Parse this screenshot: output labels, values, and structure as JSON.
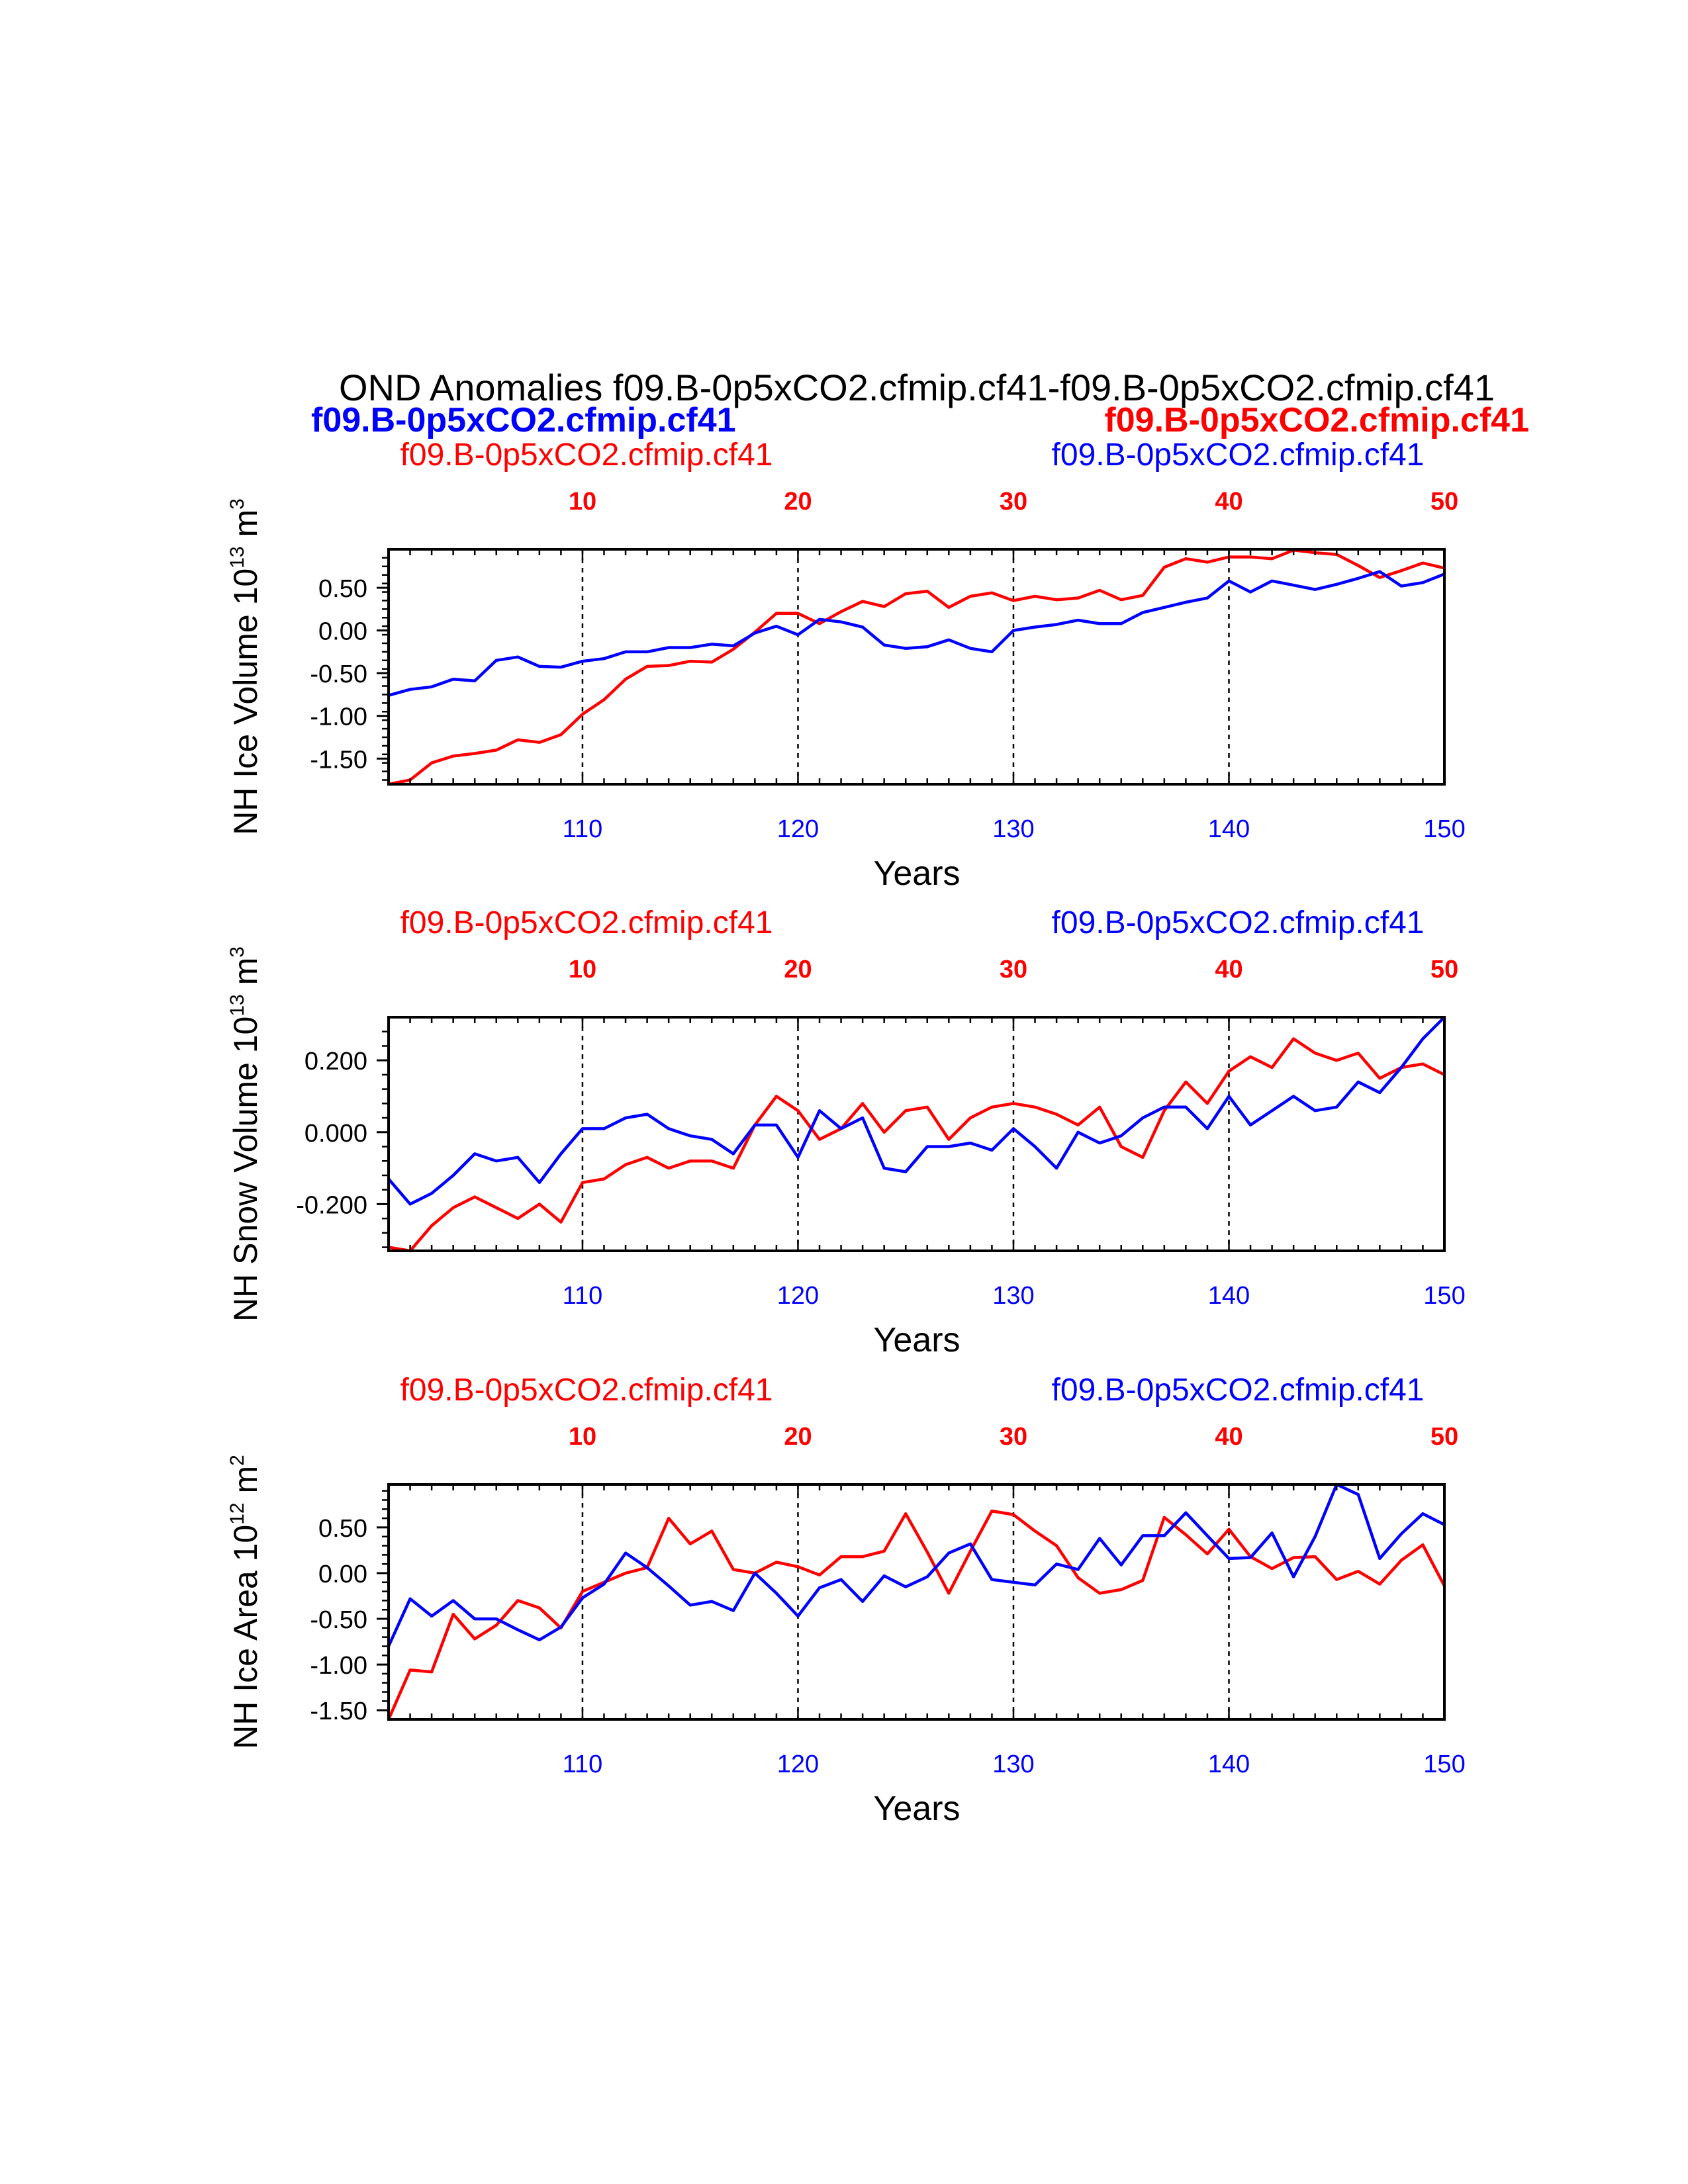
{
  "title": "OND Anomalies f09.B-0p5xCO2.cfmip.cf41-f09.B-0p5xCO2.cfmip.cf41",
  "header": {
    "left_bold": "f09.B-0p5xCO2.cfmip.cf41",
    "right_bold": "f09.B-0p5xCO2.cfmip.cf41"
  },
  "colors": {
    "red": "#ff0000",
    "blue": "#0000ff",
    "axis": "#000000"
  },
  "chart_data": [
    {
      "type": "line",
      "ylabel": "NH Ice Volume 10",
      "ylabel_sup": "13",
      "ylabel_unit": "m",
      "ylabel_unit_sup": "3",
      "xlabel": "Years",
      "left_label": "f09.B-0p5xCO2.cfmip.cf41",
      "right_label": "f09.B-0p5xCO2.cfmip.cf41",
      "top_ticks": [
        "10",
        "20",
        "30",
        "40",
        "50"
      ],
      "bottom_ticks": [
        "110",
        "120",
        "130",
        "140",
        "150"
      ],
      "xlim": [
        101,
        150
      ],
      "ylim": [
        -1.8,
        0.95
      ],
      "yticks": [
        0.5,
        0.0,
        -0.5,
        -1.0,
        -1.5
      ],
      "ytick_labels": [
        "0.50",
        "0.00",
        "-0.50",
        "-1.00",
        "-1.50"
      ],
      "yminor": [
        -1.75,
        -1.65,
        -1.55,
        -1.45,
        -1.35,
        -1.25,
        -1.15,
        -1.05,
        -0.95,
        -0.85,
        -0.75,
        -0.65,
        -0.55,
        -0.45,
        -0.35,
        -0.25,
        -0.15,
        -0.05,
        0.05,
        0.15,
        0.25,
        0.35,
        0.45,
        0.55,
        0.65,
        0.75,
        0.85
      ],
      "grid_x": [
        110,
        120,
        130,
        140
      ],
      "x": [
        101,
        102,
        103,
        104,
        105,
        106,
        107,
        108,
        109,
        110,
        111,
        112,
        113,
        114,
        115,
        116,
        117,
        118,
        119,
        120,
        121,
        122,
        123,
        124,
        125,
        126,
        127,
        128,
        129,
        130,
        131,
        132,
        133,
        134,
        135,
        136,
        137,
        138,
        139,
        140,
        141,
        142,
        143,
        144,
        145,
        146,
        147,
        148,
        149,
        150
      ],
      "series": [
        {
          "color": "red",
          "values": [
            -1.8,
            -1.75,
            -1.55,
            -1.47,
            -1.44,
            -1.4,
            -1.28,
            -1.31,
            -1.22,
            -0.98,
            -0.81,
            -0.57,
            -0.42,
            -0.41,
            -0.36,
            -0.37,
            -0.22,
            -0.02,
            0.2,
            0.2,
            0.08,
            0.22,
            0.34,
            0.28,
            0.43,
            0.46,
            0.27,
            0.4,
            0.44,
            0.35,
            0.4,
            0.36,
            0.38,
            0.47,
            0.36,
            0.41,
            0.74,
            0.84,
            0.8,
            0.86,
            0.86,
            0.84,
            0.94,
            0.91,
            0.89,
            0.76,
            0.62,
            0.7,
            0.79,
            0.73
          ]
        },
        {
          "color": "blue",
          "values": [
            -0.76,
            -0.69,
            -0.66,
            -0.57,
            -0.59,
            -0.35,
            -0.31,
            -0.42,
            -0.43,
            -0.36,
            -0.33,
            -0.25,
            -0.25,
            -0.2,
            -0.2,
            -0.16,
            -0.18,
            -0.03,
            0.05,
            -0.05,
            0.13,
            0.1,
            0.04,
            -0.17,
            -0.21,
            -0.19,
            -0.11,
            -0.21,
            -0.25,
            0.0,
            0.04,
            0.07,
            0.12,
            0.08,
            0.08,
            0.21,
            0.27,
            0.33,
            0.38,
            0.58,
            0.45,
            0.58,
            0.53,
            0.48,
            0.54,
            0.61,
            0.69,
            0.52,
            0.56,
            0.66
          ]
        }
      ]
    },
    {
      "type": "line",
      "ylabel": "NH Snow Volume 10",
      "ylabel_sup": "13",
      "ylabel_unit": "m",
      "ylabel_unit_sup": "3",
      "xlabel": "Years",
      "left_label": "f09.B-0p5xCO2.cfmip.cf41",
      "right_label": "f09.B-0p5xCO2.cfmip.cf41",
      "top_ticks": [
        "10",
        "20",
        "30",
        "40",
        "50"
      ],
      "bottom_ticks": [
        "110",
        "120",
        "130",
        "140",
        "150"
      ],
      "xlim": [
        101,
        150
      ],
      "ylim": [
        -0.33,
        0.32
      ],
      "yticks": [
        0.2,
        0.0,
        -0.2
      ],
      "ytick_labels": [
        "0.200",
        "0.000",
        "-0.200"
      ],
      "yminor": [
        -0.32,
        -0.28,
        -0.24,
        -0.16,
        -0.12,
        -0.08,
        -0.04,
        0.04,
        0.08,
        0.12,
        0.16,
        0.24,
        0.28
      ],
      "grid_x": [
        110,
        120,
        130,
        140
      ],
      "x": [
        101,
        102,
        103,
        104,
        105,
        106,
        107,
        108,
        109,
        110,
        111,
        112,
        113,
        114,
        115,
        116,
        117,
        118,
        119,
        120,
        121,
        122,
        123,
        124,
        125,
        126,
        127,
        128,
        129,
        130,
        131,
        132,
        133,
        134,
        135,
        136,
        137,
        138,
        139,
        140,
        141,
        142,
        143,
        144,
        145,
        146,
        147,
        148,
        149,
        150
      ],
      "series": [
        {
          "color": "red",
          "values": [
            -0.32,
            -0.33,
            -0.26,
            -0.21,
            -0.18,
            -0.21,
            -0.24,
            -0.2,
            -0.25,
            -0.14,
            -0.13,
            -0.09,
            -0.07,
            -0.1,
            -0.08,
            -0.08,
            -0.1,
            0.02,
            0.1,
            0.06,
            -0.02,
            0.01,
            0.08,
            0.0,
            0.06,
            0.07,
            -0.02,
            0.04,
            0.07,
            0.08,
            0.07,
            0.05,
            0.02,
            0.07,
            -0.04,
            -0.07,
            0.06,
            0.14,
            0.08,
            0.17,
            0.21,
            0.18,
            0.26,
            0.22,
            0.2,
            0.22,
            0.15,
            0.18,
            0.19,
            0.16
          ]
        },
        {
          "color": "blue",
          "values": [
            -0.13,
            -0.2,
            -0.17,
            -0.12,
            -0.06,
            -0.08,
            -0.07,
            -0.14,
            -0.06,
            0.01,
            0.01,
            0.04,
            0.05,
            0.01,
            -0.01,
            -0.02,
            -0.06,
            0.02,
            0.02,
            -0.07,
            0.06,
            0.01,
            0.04,
            -0.1,
            -0.11,
            -0.04,
            -0.04,
            -0.03,
            -0.05,
            0.01,
            -0.04,
            -0.1,
            0.0,
            -0.03,
            -0.01,
            0.04,
            0.07,
            0.07,
            0.01,
            0.1,
            0.02,
            0.06,
            0.1,
            0.06,
            0.07,
            0.14,
            0.11,
            0.18,
            0.26,
            0.32
          ]
        }
      ]
    },
    {
      "type": "line",
      "ylabel": "NH Ice Area 10",
      "ylabel_sup": "12",
      "ylabel_unit": "m",
      "ylabel_unit_sup": "2",
      "xlabel": "Years",
      "left_label": "f09.B-0p5xCO2.cfmip.cf41",
      "right_label": "f09.B-0p5xCO2.cfmip.cf41",
      "top_ticks": [
        "10",
        "20",
        "30",
        "40",
        "50"
      ],
      "bottom_ticks": [
        "110",
        "120",
        "130",
        "140",
        "150"
      ],
      "xlim": [
        101,
        150
      ],
      "ylim": [
        -1.6,
        0.97
      ],
      "yticks": [
        0.5,
        0.0,
        -0.5,
        -1.0,
        -1.5
      ],
      "ytick_labels": [
        "0.50",
        "0.00",
        "-0.50",
        "-1.00",
        "-1.50"
      ],
      "yminor": [
        -1.4,
        -1.3,
        -1.2,
        -1.1,
        -0.9,
        -0.8,
        -0.7,
        -0.6,
        -0.4,
        -0.3,
        -0.2,
        -0.1,
        0.1,
        0.2,
        0.3,
        0.4,
        0.6,
        0.7,
        0.8,
        0.9
      ],
      "grid_x": [
        110,
        120,
        130,
        140
      ],
      "x": [
        101,
        102,
        103,
        104,
        105,
        106,
        107,
        108,
        109,
        110,
        111,
        112,
        113,
        114,
        115,
        116,
        117,
        118,
        119,
        120,
        121,
        122,
        123,
        124,
        125,
        126,
        127,
        128,
        129,
        130,
        131,
        132,
        133,
        134,
        135,
        136,
        137,
        138,
        139,
        140,
        141,
        142,
        143,
        144,
        145,
        146,
        147,
        148,
        149,
        150
      ],
      "series": [
        {
          "color": "red",
          "values": [
            -1.6,
            -1.06,
            -1.08,
            -0.45,
            -0.72,
            -0.57,
            -0.3,
            -0.38,
            -0.6,
            -0.2,
            -0.1,
            0.0,
            0.06,
            0.6,
            0.32,
            0.46,
            0.04,
            0.0,
            0.12,
            0.07,
            -0.02,
            0.18,
            0.18,
            0.24,
            0.65,
            0.23,
            -0.22,
            0.24,
            0.68,
            0.64,
            0.46,
            0.3,
            -0.05,
            -0.22,
            -0.18,
            -0.08,
            0.61,
            0.42,
            0.21,
            0.48,
            0.18,
            0.05,
            0.17,
            0.18,
            -0.07,
            0.02,
            -0.12,
            0.14,
            0.31,
            -0.14
          ]
        },
        {
          "color": "blue",
          "values": [
            -0.8,
            -0.28,
            -0.47,
            -0.3,
            -0.5,
            -0.5,
            -0.62,
            -0.73,
            -0.59,
            -0.27,
            -0.12,
            0.22,
            0.06,
            -0.14,
            -0.35,
            -0.31,
            -0.41,
            0.0,
            -0.22,
            -0.47,
            -0.16,
            -0.07,
            -0.31,
            -0.03,
            -0.15,
            -0.04,
            0.22,
            0.32,
            -0.07,
            -0.1,
            -0.13,
            0.1,
            0.04,
            0.38,
            0.09,
            0.41,
            0.41,
            0.66,
            0.41,
            0.16,
            0.17,
            0.44,
            -0.04,
            0.4,
            0.97,
            0.86,
            0.16,
            0.43,
            0.65,
            0.53
          ]
        }
      ]
    }
  ]
}
